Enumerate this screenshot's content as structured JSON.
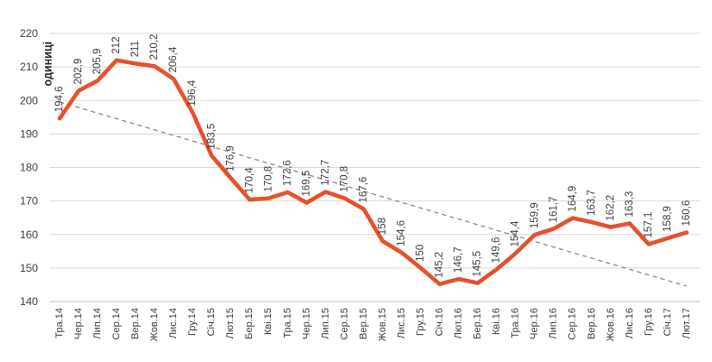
{
  "chart_data": {
    "type": "line",
    "title": "",
    "xlabel": "",
    "ylabel": "одиниці",
    "ylim": [
      140,
      220
    ],
    "yticks": [
      140,
      150,
      160,
      170,
      180,
      190,
      200,
      210,
      220
    ],
    "grid": true,
    "legend_position": "none",
    "decimal_separator": ",",
    "categories": [
      "Тра.14",
      "Чер.14",
      "Лип.14",
      "Сер.14",
      "Вер.14",
      "Жов.14",
      "Лис.14",
      "Гру.14",
      "Січ.15",
      "Лют.15",
      "Бер.15",
      "Кві.15",
      "Тра.15",
      "Чер.15",
      "Лип.15",
      "Сер.15",
      "Вер.15",
      "Жов.15",
      "Лис.15",
      "Гру.15",
      "Січ.16",
      "Лют.16",
      "Бер.16",
      "Кві.16",
      "Тра.16",
      "Чер.16",
      "Лип.16",
      "Сер.16",
      "Вер.16",
      "Жов.16",
      "Лис.16",
      "Гру.16",
      "Січ.17",
      "Лют.17"
    ],
    "series": [
      {
        "name": "одиниці",
        "values": [
          194.6,
          202.9,
          205.9,
          212,
          211,
          210.2,
          206.4,
          196.4,
          183.5,
          176.9,
          170.4,
          170.8,
          172.6,
          169.5,
          172.7,
          170.8,
          167.6,
          158,
          154.6,
          150,
          145.2,
          146.7,
          145.5,
          149.6,
          154.4,
          159.9,
          161.7,
          164.9,
          163.7,
          162.2,
          163.3,
          157.1,
          158.9,
          160.6
        ]
      }
    ],
    "trendline": {
      "type": "linear",
      "style": "dashed"
    },
    "data_labels": true,
    "colors": {
      "series": "#E8502A",
      "grid": "#D9D9D9",
      "axis_line": "#BFBFBF",
      "text": "#404040",
      "trend": "#8C8C8C"
    }
  }
}
